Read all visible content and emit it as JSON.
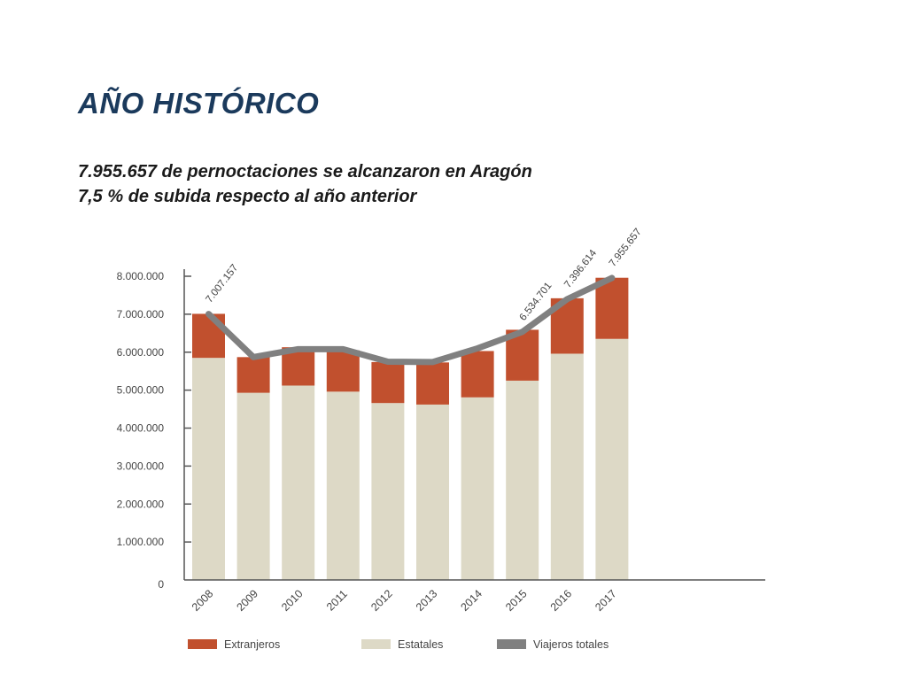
{
  "page": {
    "title": "AÑO HISTÓRICO",
    "subtitle_line1": "7.955.657 de pernoctaciones se alcanzaron en Aragón",
    "subtitle_line2": "7,5 % de subida respecto al año anterior"
  },
  "chart_data": {
    "type": "bar",
    "stacked": true,
    "categories": [
      "2008",
      "2009",
      "2010",
      "2011",
      "2012",
      "2013",
      "2014",
      "2015",
      "2016",
      "2017"
    ],
    "series": [
      {
        "name": "Estatales",
        "kind": "bar",
        "color": "#ddd9c6",
        "values": [
          5850000,
          4930000,
          5120000,
          4960000,
          4660000,
          4620000,
          4810000,
          5250000,
          5960000,
          6350000
        ]
      },
      {
        "name": "Extranjeros",
        "kind": "bar",
        "color": "#c1502e",
        "values": [
          1160000,
          940000,
          1010000,
          1090000,
          1080000,
          1110000,
          1220000,
          1340000,
          1460000,
          1610000
        ]
      },
      {
        "name": "Viajeros totales",
        "kind": "line",
        "color": "#808080",
        "values": [
          7007157,
          5870000,
          6080000,
          6080000,
          5750000,
          5740000,
          6100000,
          6534701,
          7396614,
          7955657
        ]
      }
    ],
    "legend_order": [
      "Extranjeros",
      "Estatales",
      "Viajeros totales"
    ],
    "data_labels": [
      {
        "category": "2008",
        "text": "7.007.157"
      },
      {
        "category": "2015",
        "text": "6.534.701"
      },
      {
        "category": "2016",
        "text": "7.396.614"
      },
      {
        "category": "2017",
        "text": "7.955.657"
      }
    ],
    "y_ticks": [
      {
        "value": 0,
        "label": "0"
      },
      {
        "value": 1000000,
        "label": "1.000.000"
      },
      {
        "value": 2000000,
        "label": "2.000.000"
      },
      {
        "value": 3000000,
        "label": "3.000.000"
      },
      {
        "value": 4000000,
        "label": "4.000.000"
      },
      {
        "value": 5000000,
        "label": "5.000.000"
      },
      {
        "value": 6000000,
        "label": "6.000.000"
      },
      {
        "value": 7000000,
        "label": "7.000.000"
      },
      {
        "value": 8000000,
        "label": "8.000.000"
      }
    ],
    "ylim": [
      0,
      8000000
    ],
    "grid": false,
    "legend_position": "bottom",
    "axis_color": "#555555",
    "title": "",
    "xlabel": "",
    "ylabel": ""
  }
}
